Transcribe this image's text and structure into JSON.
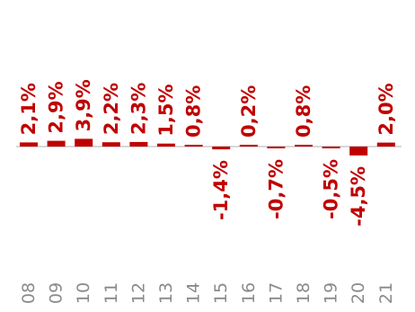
{
  "chart_data": {
    "type": "bar",
    "categories": [
      "08",
      "09",
      "10",
      "11",
      "12",
      "13",
      "14",
      "15",
      "16",
      "17",
      "18",
      "19",
      "20",
      "21"
    ],
    "values": [
      2.1,
      2.9,
      3.9,
      2.2,
      2.3,
      1.5,
      0.8,
      -1.4,
      0.2,
      -0.7,
      0.8,
      -0.5,
      -4.5,
      2.0
    ],
    "data_labels": [
      "2,1%",
      "2,9%",
      "3,9%",
      "2,2%",
      "2,3%",
      "1,5%",
      "0,8%",
      "-1,4%",
      "0,2%",
      "-0,7%",
      "0,8%",
      "-0,5%",
      "-4,5%",
      "2,0%"
    ],
    "title": "",
    "xlabel": "",
    "ylabel": "",
    "ylim": [
      -4.5,
      3.9
    ],
    "grid": false,
    "legend": "none",
    "bar_color": "#c00000",
    "label_color": "#c00000",
    "axis_color": "#b0b0b0",
    "tick_color": "#8a8a8a"
  }
}
